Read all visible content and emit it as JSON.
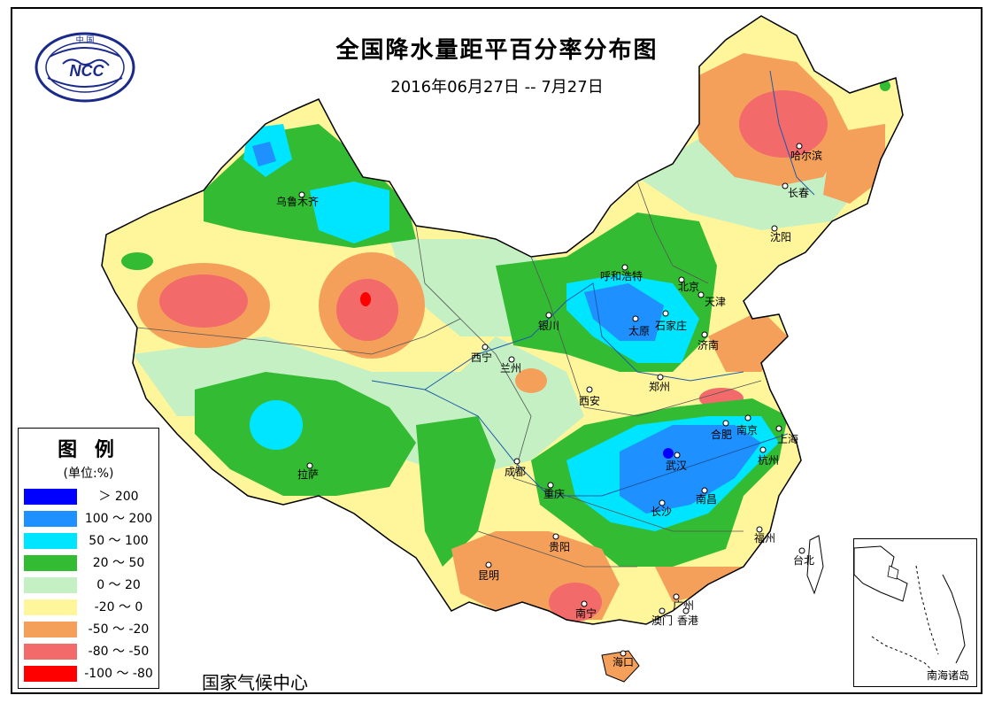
{
  "title": "全国降水量距平百分率分布图",
  "date_range": "2016年06月27日 -- 7月27日",
  "logo": {
    "top_text": "中 国",
    "center_text": "NCC"
  },
  "footer": "国家气候中心",
  "legend": {
    "title": "图 例",
    "unit": "(单位:%)",
    "items": [
      {
        "label": "＞ 200",
        "color": "#0000ff"
      },
      {
        "label": "100 ～ 200",
        "color": "#1e90ff"
      },
      {
        "label": "50 ～ 100",
        "color": "#00e5ff"
      },
      {
        "label": "20 ～ 50",
        "color": "#33bb33"
      },
      {
        "label": "0 ～ 20",
        "color": "#c4f0c4"
      },
      {
        "label": "-20 ～ 0",
        "color": "#fff59a"
      },
      {
        "label": "-50 ～ -20",
        "color": "#f4a05a"
      },
      {
        "label": "-80 ～ -50",
        "color": "#f26a6a"
      },
      {
        "label": "-100 ～ -80",
        "color": "#ff0000"
      }
    ]
  },
  "inset": {
    "label": "南海诸岛"
  },
  "cities": {
    "urumqi": "乌鲁木齐",
    "harbin": "哈尔滨",
    "changchun": "长春",
    "shenyang": "沈阳",
    "hohhot": "呼和浩特",
    "beijing": "北京",
    "tianjin": "天津",
    "yinchuan": "银川",
    "taiyuan": "太原",
    "shijiazhuang": "石家庄",
    "jinan": "济南",
    "xining": "西宁",
    "lanzhou": "兰州",
    "zhengzhou": "郑州",
    "xian": "西安",
    "hefei": "合肥",
    "nanjing": "南京",
    "shanghai": "上海",
    "lhasa": "拉萨",
    "chengdu": "成都",
    "wuhan": "武汉",
    "hangzhou": "杭州",
    "chongqing": "重庆",
    "changsha": "长沙",
    "nanchang": "南昌",
    "fuzhou": "福州",
    "taipei": "台北",
    "guiyang": "贵阳",
    "kunming": "昆明",
    "guangzhou": "广州",
    "nanning": "南宁",
    "macao": "澳门",
    "hongkong": "香港",
    "haikou": "海口"
  }
}
